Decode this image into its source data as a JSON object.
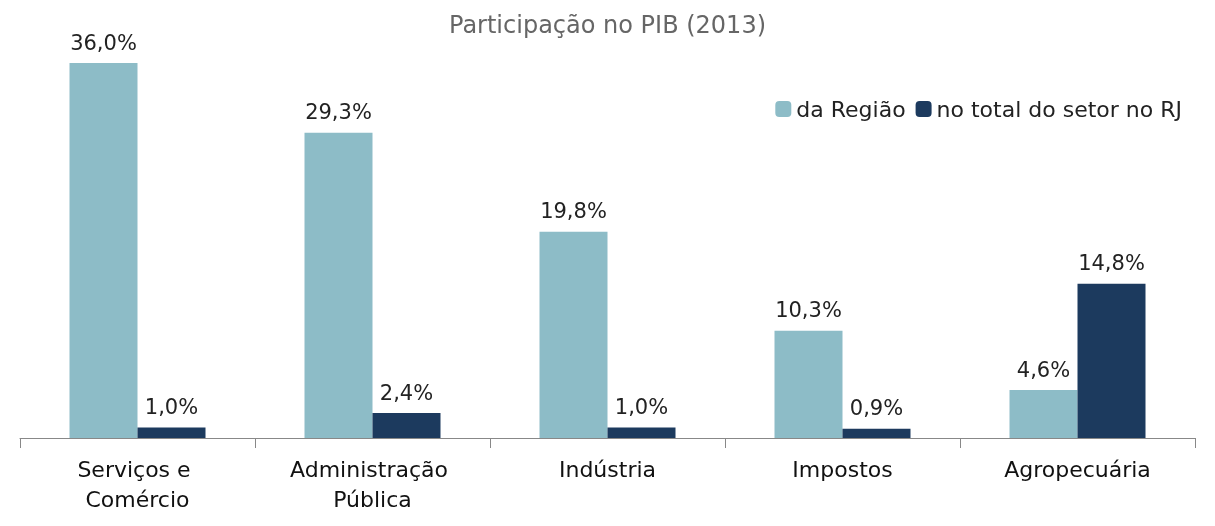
{
  "chart_data": {
    "type": "bar",
    "title": "Participação no PIB (2013)",
    "categories": [
      "Serviços e Comércio",
      "Administração Pública",
      "Indústria",
      "Impostos",
      "Agropecuária"
    ],
    "series": [
      {
        "name": "da Região",
        "color": "#8dbcc7",
        "values": [
          36.0,
          29.3,
          19.8,
          10.3,
          4.6
        ],
        "value_labels": [
          "36,0%",
          "29,3%",
          "19,8%",
          "10,3%",
          "4,6%"
        ]
      },
      {
        "name": "no total do setor no RJ",
        "color": "#1c3a5e",
        "values": [
          1.0,
          2.4,
          1.0,
          0.9,
          14.8
        ],
        "value_labels": [
          "1,0%",
          "2,4%",
          "1,0%",
          "0,9%",
          "14,8%"
        ]
      }
    ],
    "legend": "top right",
    "grid": false
  }
}
